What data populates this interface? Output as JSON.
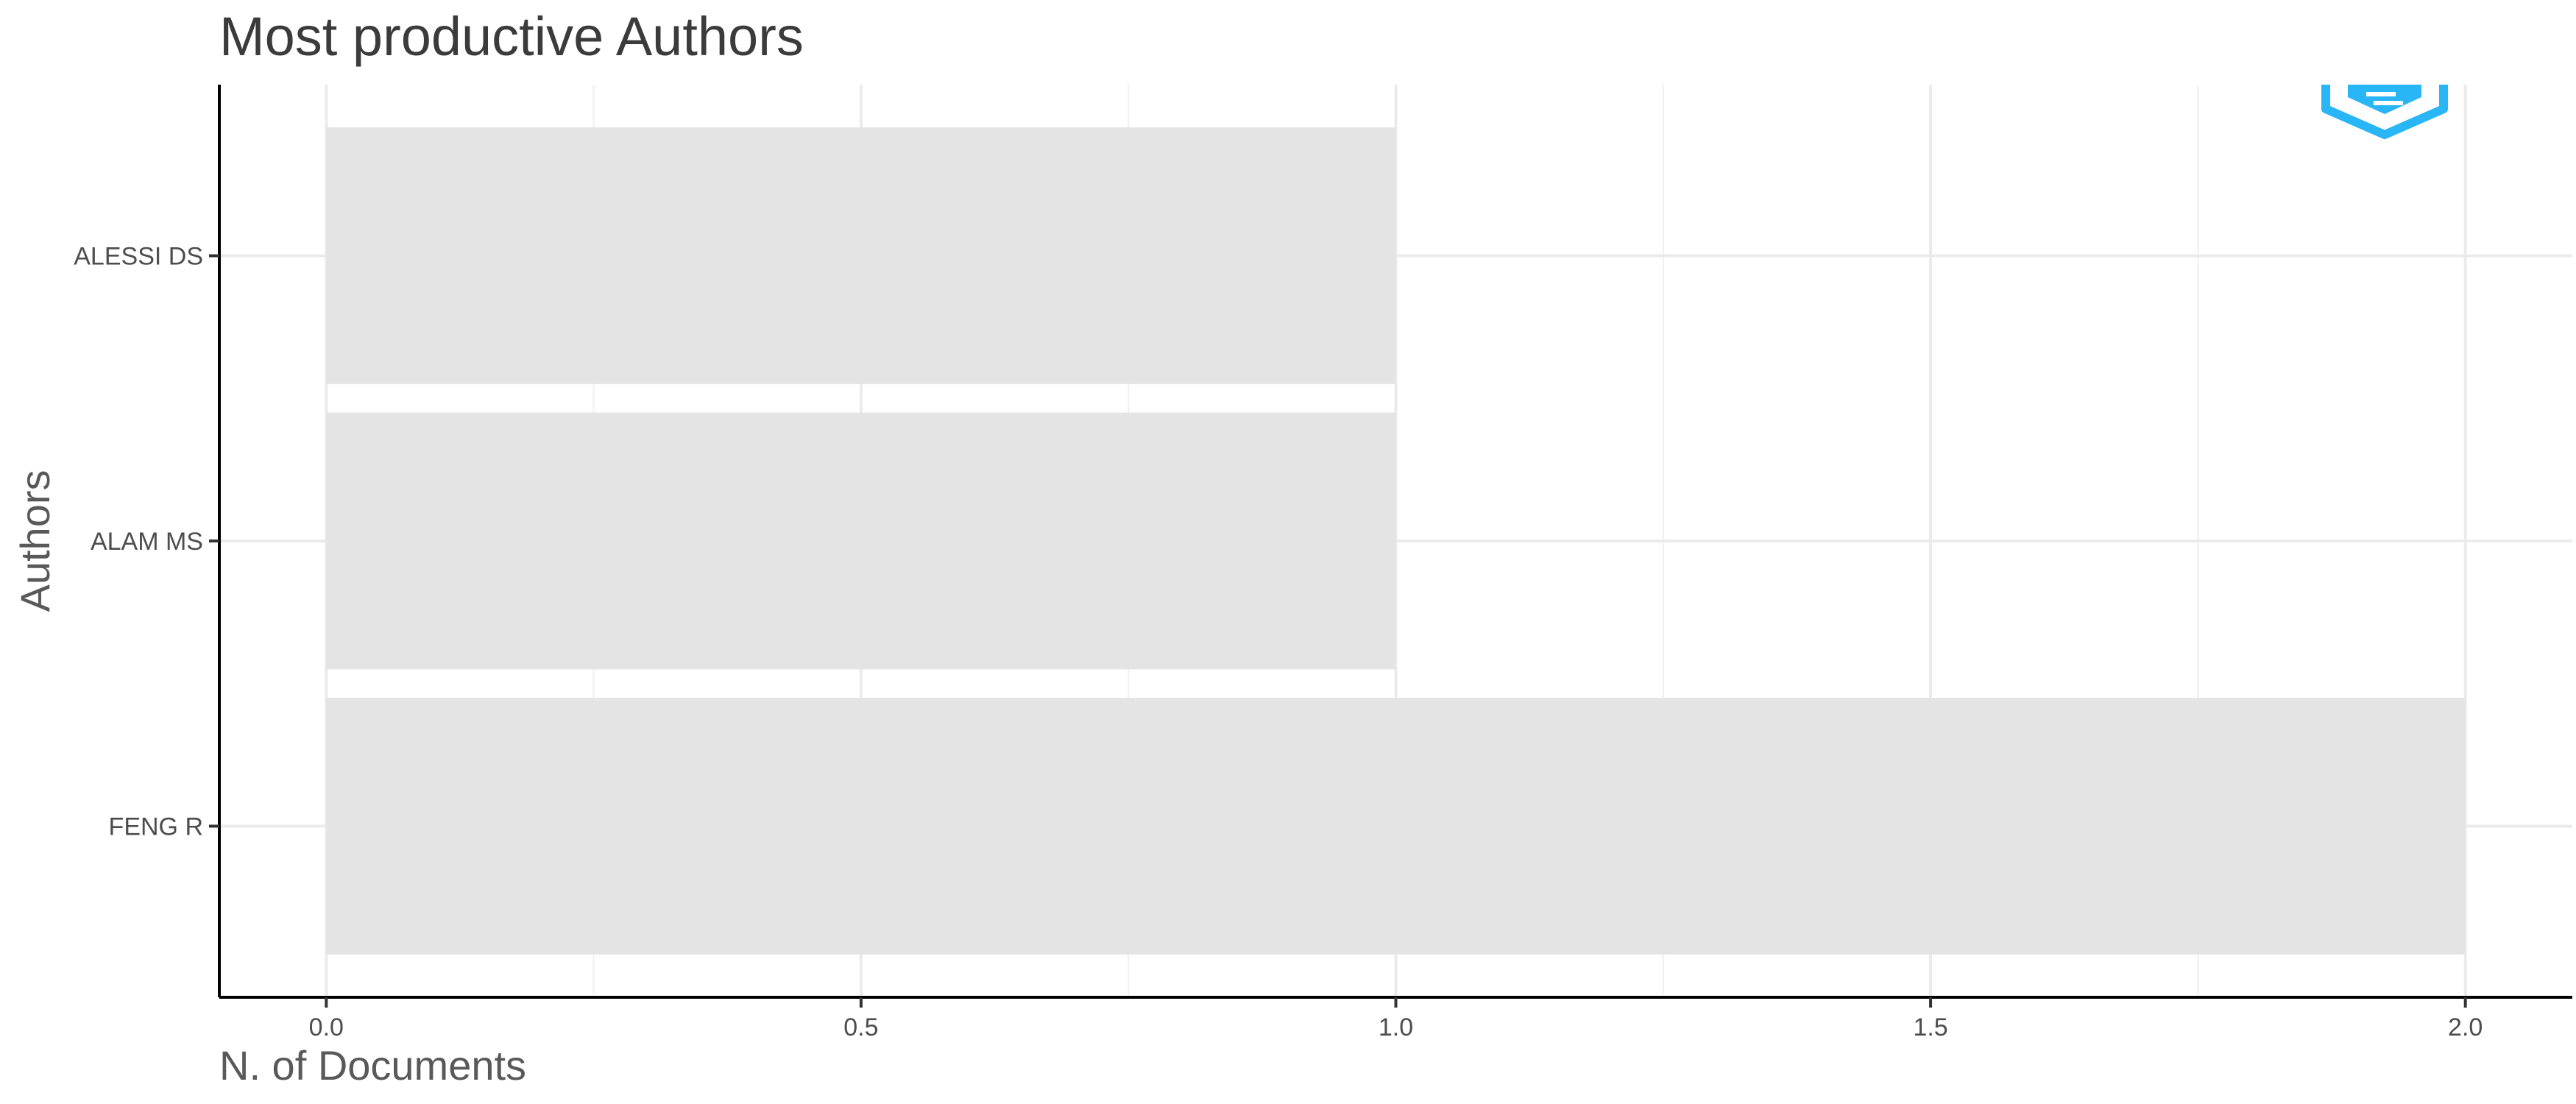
{
  "chart_data": {
    "type": "bar",
    "orientation": "horizontal",
    "title": "Most productive Authors",
    "xlabel": "N. of Documents",
    "ylabel": "Authors",
    "categories": [
      "FENG R",
      "ALAM MS",
      "ALESSI DS"
    ],
    "values": [
      2,
      1,
      1
    ],
    "xlim": [
      -0.1,
      2.1
    ],
    "xticks": [
      0.0,
      0.5,
      1.0,
      1.5,
      2.0
    ],
    "xtick_labels": [
      "0.0",
      "0.5",
      "1.0",
      "1.5",
      "2.0"
    ],
    "grid": true,
    "bar_color": "#e4e4e4",
    "logo_color": "#29b6f6"
  },
  "logo": {
    "icon": "bibliometrix-logo-icon"
  }
}
